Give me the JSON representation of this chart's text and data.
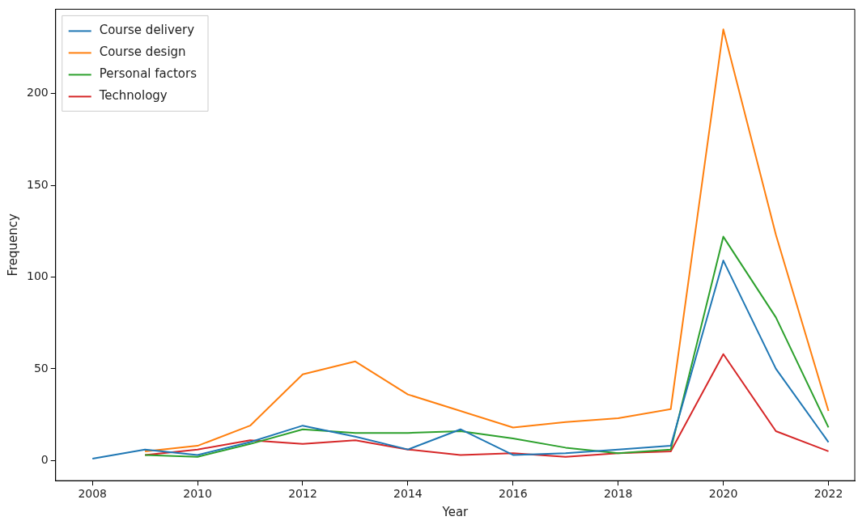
{
  "chart_data": {
    "type": "line",
    "xlabel": "Year",
    "ylabel": "Frequency",
    "x": [
      2008,
      2009,
      2010,
      2011,
      2012,
      2013,
      2014,
      2015,
      2016,
      2017,
      2018,
      2019,
      2020,
      2021,
      2022
    ],
    "series": [
      {
        "name": "Course delivery",
        "color": "#1f77b4",
        "values": [
          1,
          6,
          3,
          10,
          19,
          13,
          6,
          17,
          3,
          4,
          6,
          8,
          109,
          50,
          10
        ]
      },
      {
        "name": "Course design",
        "color": "#ff7f0e",
        "values": [
          null,
          5,
          8,
          19,
          47,
          54,
          36,
          27,
          18,
          21,
          23,
          28,
          235,
          123,
          27
        ]
      },
      {
        "name": "Personal factors",
        "color": "#2ca02c",
        "values": [
          null,
          3,
          2,
          9,
          17,
          15,
          15,
          16,
          12,
          7,
          4,
          6,
          122,
          78,
          18
        ]
      },
      {
        "name": "Technology",
        "color": "#d62728",
        "values": [
          null,
          3,
          6,
          11,
          9,
          11,
          6,
          3,
          4,
          2,
          4,
          5,
          58,
          16,
          5
        ]
      }
    ],
    "xlim": [
      2007.3,
      2022.5
    ],
    "xticks": [
      2008,
      2010,
      2012,
      2014,
      2016,
      2018,
      2020,
      2022
    ],
    "ylim": [
      -11,
      246
    ],
    "yticks": [
      0,
      50,
      100,
      150,
      200
    ],
    "legend": "top left",
    "grid": false,
    "marker": "none",
    "line_style": "solid"
  }
}
